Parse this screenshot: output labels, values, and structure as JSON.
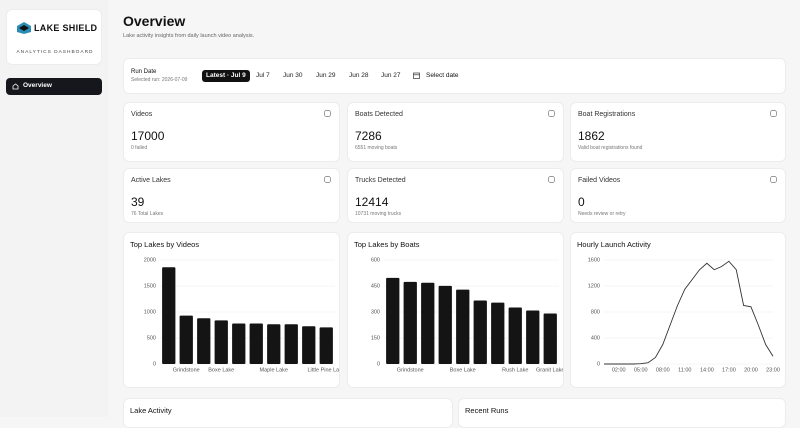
{
  "sidebar": {
    "brand": "LAKE SHIELD",
    "tagline": "ANALYTICS DASHBOARD",
    "nav": [
      "Overview"
    ]
  },
  "header": {
    "title": "Overview",
    "subtitle": "Lake activity insights from daily launch video analysis."
  },
  "run_date": {
    "label": "Run Date",
    "selected": "Selected run: 2026-07-09",
    "chips": [
      "Latest · Jul 9",
      "Jul 7",
      "Jun 30",
      "Jun 29",
      "Jun 28",
      "Jun 27"
    ],
    "picker": "Select date"
  },
  "stats": [
    {
      "label": "Videos",
      "value": "17000",
      "note": "0 failed"
    },
    {
      "label": "Boats Detected",
      "value": "7286",
      "note": "6551 moving boats"
    },
    {
      "label": "Boat Registrations",
      "value": "1862",
      "note": "Valid boat registrations found"
    },
    {
      "label": "Active Lakes",
      "value": "39",
      "note": "76 Total Lakes"
    },
    {
      "label": "Trucks Detected",
      "value": "12414",
      "note": "10731 moving trucks"
    },
    {
      "label": "Failed Videos",
      "value": "0",
      "note": "Needs review or retry"
    }
  ],
  "chart_data": [
    {
      "type": "bar",
      "title": "Top Lakes by Videos",
      "color": "#141414",
      "categories": [
        null,
        "Grindstone",
        null,
        "Boxe Lake",
        null,
        null,
        "Maple Lake",
        null,
        null,
        "Little Pine Lake"
      ],
      "values": [
        1860,
        930,
        880,
        840,
        780,
        780,
        765,
        765,
        725,
        705
      ],
      "ylim": [
        0,
        2000
      ],
      "yticks": [
        0,
        500,
        1000,
        1500,
        2000
      ],
      "grid": true
    },
    {
      "type": "bar",
      "title": "Top Lakes by Boats",
      "color": "#141414",
      "categories": [
        null,
        "Grindstone",
        null,
        null,
        "Boxe Lake",
        null,
        null,
        "Rush Lake",
        null,
        "Granit Lake"
      ],
      "values": [
        497,
        474,
        469,
        451,
        429,
        366,
        354,
        326,
        309,
        291
      ],
      "ylim": [
        0,
        600
      ],
      "yticks": [
        0,
        150,
        300,
        450,
        600
      ],
      "grid": true
    },
    {
      "type": "line",
      "title": "Hourly Launch Activity",
      "color": "#333333",
      "x": [
        0,
        1,
        2,
        3,
        4,
        5,
        6,
        7,
        8,
        9,
        10,
        11,
        12,
        13,
        14,
        15,
        16,
        17,
        18,
        19,
        20,
        21,
        22,
        23
      ],
      "values": [
        0,
        0,
        0,
        0,
        0,
        5,
        20,
        100,
        300,
        600,
        900,
        1150,
        1300,
        1450,
        1550,
        1450,
        1500,
        1580,
        1450,
        900,
        880,
        600,
        300,
        120
      ],
      "xlim": [
        0,
        23
      ],
      "xticks": [
        {
          "value": 2,
          "label": "02:00"
        },
        {
          "value": 5,
          "label": "05:00"
        },
        {
          "value": 8,
          "label": "08:00"
        },
        {
          "value": 11,
          "label": "11:00"
        },
        {
          "value": 14,
          "label": "14:00"
        },
        {
          "value": 17,
          "label": "17:00"
        },
        {
          "value": 20,
          "label": "20:00"
        },
        {
          "value": 23,
          "label": "23:00"
        }
      ],
      "ylim": [
        0,
        1600
      ],
      "yticks": [
        0,
        400,
        800,
        1200,
        1600
      ],
      "grid": true
    }
  ],
  "bottom": [
    "Lake Activity",
    "Recent Runs"
  ]
}
